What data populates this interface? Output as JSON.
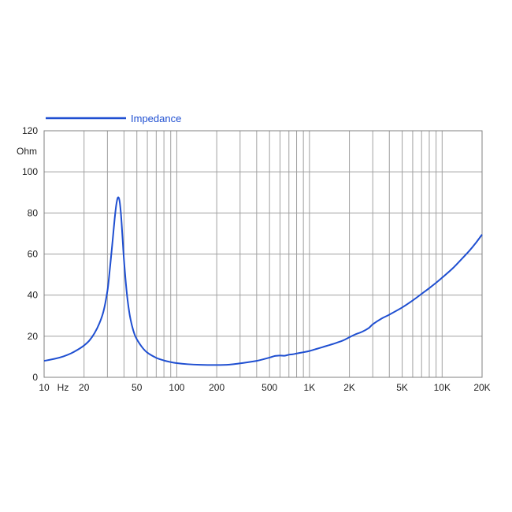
{
  "chart_data": {
    "type": "line",
    "x_scale": "log",
    "xlim": [
      10,
      20000
    ],
    "ylim": [
      0,
      120
    ],
    "ylabel": "Ohm",
    "xlabel": "Hz",
    "grid": true,
    "legend_position": "top-left",
    "x_ticks": [
      {
        "value": 10,
        "label": "10"
      },
      {
        "value": 20,
        "label": "20"
      },
      {
        "value": 50,
        "label": "50"
      },
      {
        "value": 100,
        "label": "100"
      },
      {
        "value": 200,
        "label": "200"
      },
      {
        "value": 500,
        "label": "500"
      },
      {
        "value": 1000,
        "label": "1K"
      },
      {
        "value": 2000,
        "label": "2K"
      },
      {
        "value": 5000,
        "label": "5K"
      },
      {
        "value": 10000,
        "label": "10K"
      },
      {
        "value": 20000,
        "label": "20K"
      }
    ],
    "y_ticks": [
      0,
      20,
      40,
      60,
      80,
      100,
      120
    ],
    "series": [
      {
        "name": "Impedance",
        "color": "#1f4fd1",
        "x": [
          10,
          12,
          14,
          16,
          18,
          20,
          22,
          24,
          26,
          28,
          30,
          31,
          32,
          33,
          34,
          35,
          36,
          37,
          38,
          39,
          40,
          42,
          44,
          46,
          48,
          50,
          55,
          60,
          70,
          80,
          90,
          100,
          120,
          150,
          200,
          250,
          300,
          400,
          500,
          550,
          600,
          650,
          700,
          750,
          800,
          900,
          1000,
          1100,
          1200,
          1300,
          1400,
          1500,
          1600,
          1800,
          2000,
          2200,
          2500,
          2800,
          3000,
          3500,
          4000,
          5000,
          6000,
          7000,
          8000,
          9000,
          10000,
          12000,
          14000,
          16000,
          18000,
          20000
        ],
        "y": [
          8,
          9,
          10.2,
          11.7,
          13.5,
          15.5,
          18,
          21.5,
          26,
          32,
          42,
          50,
          59,
          68,
          77,
          84,
          87.5,
          86,
          79,
          68,
          57,
          41,
          31,
          25,
          21,
          18.5,
          14.5,
          12,
          9.5,
          8.2,
          7.4,
          6.9,
          6.4,
          6.1,
          6,
          6.2,
          6.8,
          8,
          9.6,
          10.4,
          10.6,
          10.5,
          11,
          11.2,
          11.6,
          12.2,
          12.8,
          13.6,
          14.3,
          15,
          15.6,
          16.2,
          16.8,
          18,
          19.5,
          20.8,
          22.2,
          24,
          25.8,
          28.6,
          30.5,
          34,
          37.4,
          40.6,
          43.4,
          46,
          48.5,
          53,
          57.5,
          61.5,
          65.5,
          69.5
        ]
      }
    ]
  }
}
